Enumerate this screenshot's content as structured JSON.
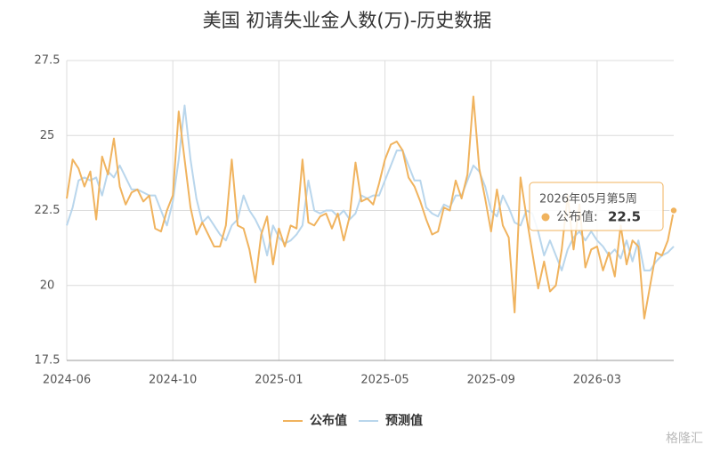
{
  "chart_data": {
    "type": "line",
    "title": "美国 初请失业金人数(万)-历史数据",
    "categories": [
      "2024-06",
      null,
      null,
      null,
      null,
      null,
      null,
      null,
      null,
      null,
      null,
      null,
      null,
      null,
      null,
      null,
      null,
      null,
      "2024-10",
      null,
      null,
      null,
      null,
      null,
      null,
      null,
      null,
      null,
      null,
      null,
      null,
      null,
      null,
      null,
      null,
      null,
      "2025-01",
      null,
      null,
      null,
      null,
      null,
      null,
      null,
      null,
      null,
      null,
      null,
      null,
      null,
      null,
      null,
      null,
      null,
      "2025-05",
      null,
      null,
      null,
      null,
      null,
      null,
      null,
      null,
      null,
      null,
      null,
      null,
      null,
      null,
      null,
      null,
      null,
      "2025-09",
      null,
      null,
      null,
      null,
      null,
      null,
      null,
      null,
      null,
      null,
      null,
      null,
      null,
      null,
      null,
      null,
      null,
      "2026-03",
      null,
      null,
      null,
      null,
      null,
      null,
      null,
      null,
      null,
      null,
      null,
      null,
      null
    ],
    "series": [
      {
        "name": "公布值",
        "color": "#f0b35e",
        "values": [
          22.9,
          24.2,
          23.9,
          23.3,
          23.8,
          22.2,
          24.3,
          23.7,
          24.9,
          23.3,
          22.7,
          23.1,
          23.2,
          22.8,
          23.0,
          21.9,
          21.8,
          22.5,
          23.0,
          25.8,
          24.2,
          22.6,
          21.7,
          22.1,
          21.7,
          21.3,
          21.3,
          22.0,
          24.2,
          22.0,
          21.9,
          21.2,
          20.1,
          21.7,
          22.3,
          20.7,
          21.9,
          21.3,
          22.0,
          21.9,
          24.2,
          22.1,
          22.0,
          22.3,
          22.4,
          21.9,
          22.4,
          21.5,
          22.3,
          24.1,
          22.8,
          22.9,
          22.7,
          23.4,
          24.2,
          24.7,
          24.8,
          24.5,
          23.6,
          23.3,
          22.8,
          22.2,
          21.7,
          21.8,
          22.6,
          22.5,
          23.5,
          22.9,
          23.7,
          26.3,
          23.9,
          22.9,
          21.8,
          23.2,
          22.0,
          21.6,
          19.1,
          23.6,
          22.3,
          21.1,
          19.9,
          20.8,
          19.8,
          20.0,
          21.2,
          23.0,
          21.2,
          22.7,
          20.6,
          21.2,
          21.3,
          20.5,
          21.1,
          20.3,
          22.0,
          20.7,
          21.5,
          21.3,
          18.9,
          20.0,
          21.1,
          21.0,
          21.5,
          22.5
        ]
      },
      {
        "name": "预测值",
        "color": "#b9d6ec",
        "values": [
          22.0,
          22.6,
          23.5,
          23.6,
          23.5,
          23.6,
          23.0,
          23.8,
          23.6,
          24.0,
          23.6,
          23.2,
          23.2,
          23.1,
          23.0,
          23.0,
          22.5,
          22.0,
          22.8,
          24.2,
          26.0,
          24.2,
          22.9,
          22.1,
          22.3,
          22.0,
          21.7,
          21.5,
          22.0,
          22.2,
          23.0,
          22.5,
          22.2,
          21.8,
          21.0,
          22.0,
          21.6,
          21.4,
          21.5,
          21.7,
          22.0,
          23.5,
          22.5,
          22.4,
          22.5,
          22.5,
          22.3,
          22.5,
          22.2,
          22.4,
          23.0,
          22.9,
          23.0,
          23.0,
          23.5,
          24.0,
          24.5,
          24.5,
          24.0,
          23.5,
          23.5,
          22.6,
          22.4,
          22.3,
          22.7,
          22.6,
          23.0,
          23.0,
          23.5,
          24.0,
          23.8,
          23.3,
          22.5,
          22.3,
          23.0,
          22.6,
          22.1,
          22.0,
          22.5,
          22.4,
          21.8,
          21.0,
          21.5,
          21.0,
          20.5,
          21.2,
          21.6,
          21.8,
          21.5,
          21.8,
          21.5,
          21.3,
          21.0,
          21.2,
          20.9,
          21.5,
          20.8,
          21.5,
          20.5,
          20.5,
          20.8,
          21.0,
          21.1,
          21.3
        ]
      }
    ],
    "ylim": [
      17.5,
      27.5
    ],
    "yticks": [
      17.5,
      20,
      22.5,
      25,
      27.5
    ],
    "grid": true,
    "legend": "bottom",
    "tooltip": {
      "title": "2026年05月第5周",
      "label": "公布值:"
    },
    "watermark": "格隆汇"
  }
}
